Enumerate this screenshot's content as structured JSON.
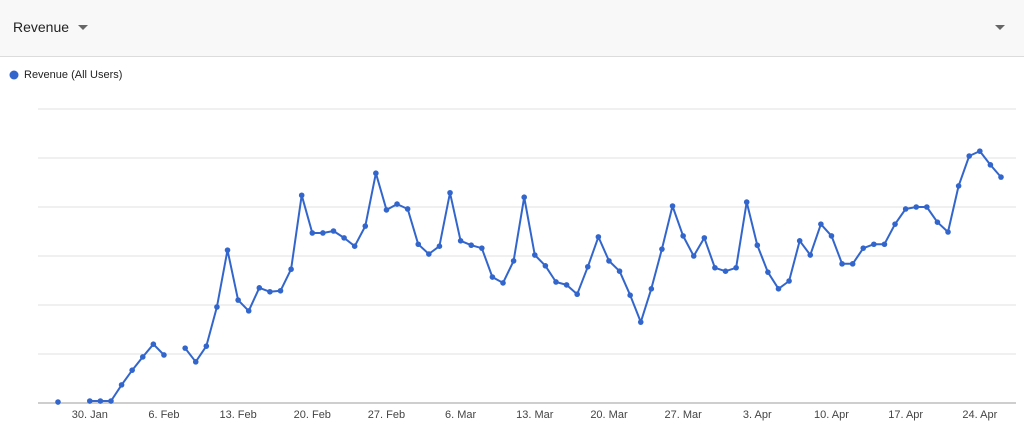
{
  "header": {
    "title": "Revenue"
  },
  "chart_data": {
    "type": "line",
    "categories": [
      null,
      null,
      null,
      "30. Jan",
      null,
      null,
      null,
      null,
      null,
      null,
      "6. Feb",
      null,
      null,
      null,
      null,
      null,
      null,
      "13. Feb",
      null,
      null,
      null,
      null,
      null,
      null,
      "20. Feb",
      null,
      null,
      null,
      null,
      null,
      null,
      "27. Feb",
      null,
      null,
      null,
      null,
      null,
      null,
      "6. Mar",
      null,
      null,
      null,
      null,
      null,
      null,
      "13. Mar",
      null,
      null,
      null,
      null,
      null,
      null,
      "20. Mar",
      null,
      null,
      null,
      null,
      null,
      null,
      "27. Mar",
      null,
      null,
      null,
      null,
      null,
      null,
      "3. Apr",
      null,
      null,
      null,
      null,
      null,
      null,
      "10. Apr",
      null,
      null,
      null,
      null,
      null,
      null,
      "17. Apr",
      null,
      null,
      null,
      null,
      null,
      null,
      "24. Apr",
      null,
      null
    ],
    "series": [
      {
        "name": "Revenue (All Users)",
        "color": "#3366cc",
        "values": [
          0.02,
          null,
          null,
          0.04,
          0.04,
          0.04,
          0.37,
          0.67,
          0.94,
          1.2,
          0.98,
          null,
          1.12,
          0.84,
          1.16,
          1.96,
          3.12,
          2.1,
          1.88,
          2.35,
          2.27,
          2.29,
          2.73,
          4.24,
          3.47,
          3.47,
          3.51,
          3.37,
          3.2,
          3.61,
          4.69,
          3.94,
          4.06,
          3.96,
          3.24,
          3.04,
          3.2,
          4.29,
          3.31,
          3.22,
          3.16,
          2.57,
          2.45,
          2.9,
          4.2,
          3.02,
          2.8,
          2.47,
          2.41,
          2.22,
          2.78,
          3.39,
          2.9,
          2.69,
          2.2,
          1.65,
          2.33,
          3.14,
          4.02,
          3.41,
          3.0,
          3.37,
          2.76,
          2.69,
          2.76,
          4.1,
          3.22,
          2.67,
          2.33,
          2.49,
          3.31,
          3.02,
          3.65,
          3.41,
          2.84,
          2.84,
          3.16,
          3.24,
          3.24,
          3.65,
          3.96,
          4.0,
          4.0,
          3.69,
          3.49,
          4.43,
          5.04,
          5.14,
          4.86,
          4.61
        ]
      }
    ],
    "ylim": [
      0,
      6
    ],
    "yticks": [
      0,
      1,
      2,
      3,
      4,
      5,
      6
    ],
    "grid": true,
    "legend": "top-left"
  }
}
